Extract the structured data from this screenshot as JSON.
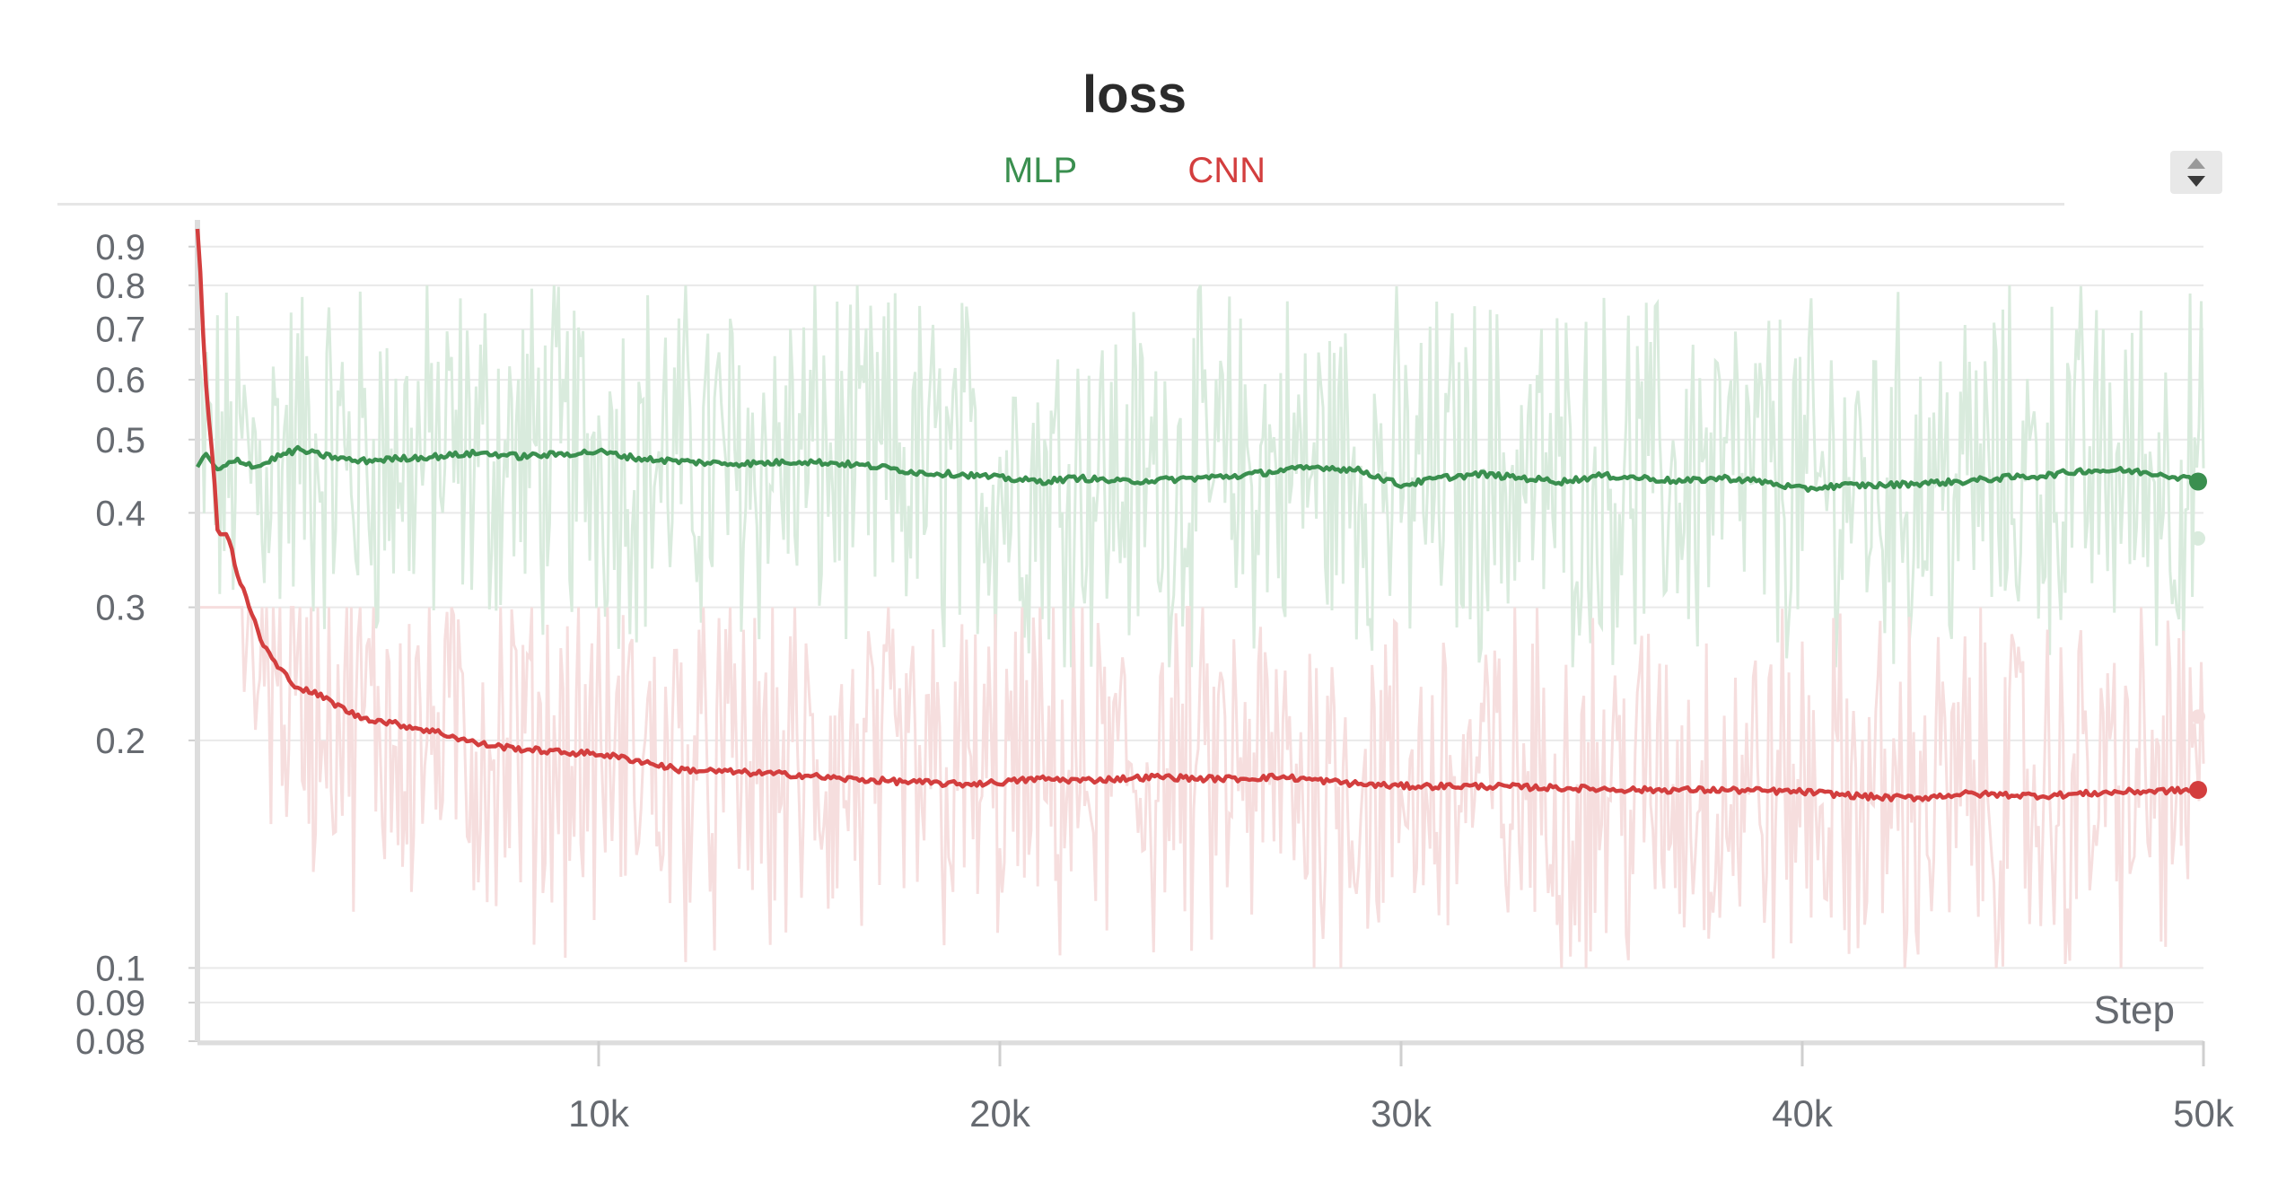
{
  "chart_data": {
    "type": "line",
    "title": "loss",
    "xlabel": "Step",
    "ylabel": "",
    "yscale": "log",
    "xlim": [
      0,
      50000
    ],
    "ylim": [
      0.08,
      0.95
    ],
    "grid": true,
    "legend": "top-center",
    "x_ticks": [
      {
        "value": 10000,
        "label": "10k"
      },
      {
        "value": 20000,
        "label": "20k"
      },
      {
        "value": 30000,
        "label": "30k"
      },
      {
        "value": 40000,
        "label": "40k"
      },
      {
        "value": 50000,
        "label": "50k"
      }
    ],
    "y_ticks": [
      {
        "value": 0.9,
        "label": "0.9"
      },
      {
        "value": 0.8,
        "label": "0.8"
      },
      {
        "value": 0.7,
        "label": "0.7"
      },
      {
        "value": 0.6,
        "label": "0.6"
      },
      {
        "value": 0.5,
        "label": "0.5"
      },
      {
        "value": 0.4,
        "label": "0.4"
      },
      {
        "value": 0.3,
        "label": "0.3"
      },
      {
        "value": 0.2,
        "label": "0.2"
      },
      {
        "value": 0.1,
        "label": "0.1"
      },
      {
        "value": 0.09,
        "label": "0.09"
      },
      {
        "value": 0.08,
        "label": "0.08"
      }
    ],
    "series": [
      {
        "name": "MLP",
        "color": "#3a8f4f",
        "raw_color": "#d9ebdd",
        "smoothed": {
          "x": [
            0,
            200,
            500,
            1000,
            1500,
            2000,
            2500,
            3000,
            4000,
            5000,
            6000,
            7000,
            7500,
            8000,
            9000,
            10000,
            11000,
            12000,
            13000,
            14000,
            15000,
            16000,
            17000,
            18000,
            19000,
            20000,
            21000,
            22000,
            23000,
            24000,
            25000,
            26000,
            27000,
            28000,
            29000,
            30000,
            31000,
            32000,
            33000,
            34000,
            35000,
            36000,
            37000,
            38000,
            39000,
            40000,
            41000,
            42000,
            43000,
            44000,
            45000,
            46000,
            47000,
            48000,
            49000,
            50000
          ],
          "y": [
            0.46,
            0.48,
            0.455,
            0.47,
            0.46,
            0.475,
            0.485,
            0.478,
            0.468,
            0.472,
            0.475,
            0.48,
            0.478,
            0.475,
            0.478,
            0.482,
            0.472,
            0.468,
            0.465,
            0.465,
            0.468,
            0.465,
            0.46,
            0.452,
            0.45,
            0.445,
            0.44,
            0.445,
            0.44,
            0.442,
            0.445,
            0.448,
            0.455,
            0.46,
            0.455,
            0.435,
            0.445,
            0.45,
            0.445,
            0.44,
            0.448,
            0.445,
            0.44,
            0.445,
            0.44,
            0.43,
            0.435,
            0.435,
            0.438,
            0.44,
            0.445,
            0.448,
            0.455,
            0.455,
            0.45,
            0.44
          ]
        },
        "raw_range": [
          0.25,
          0.8
        ],
        "raw_last": 0.37
      },
      {
        "name": "CNN",
        "color": "#d33e3e",
        "raw_color": "#f6dede",
        "smoothed": {
          "x": [
            0,
            80,
            180,
            300,
            400,
            500,
            800,
            1000,
            1300,
            1600,
            2000,
            2500,
            3000,
            4000,
            5000,
            6000,
            7000,
            8000,
            9000,
            10000,
            11000,
            12000,
            13000,
            14000,
            15000,
            16000,
            17000,
            18000,
            19000,
            20000,
            21000,
            22000,
            23000,
            24000,
            25000,
            26000,
            27000,
            28000,
            29000,
            30000,
            32000,
            34000,
            36000,
            38000,
            40000,
            42000,
            43000,
            44000,
            46000,
            47000,
            48000,
            50000
          ],
          "y": [
            0.95,
            0.82,
            0.62,
            0.52,
            0.46,
            0.38,
            0.37,
            0.33,
            0.3,
            0.27,
            0.25,
            0.235,
            0.23,
            0.215,
            0.21,
            0.205,
            0.198,
            0.195,
            0.193,
            0.192,
            0.188,
            0.183,
            0.182,
            0.181,
            0.18,
            0.178,
            0.177,
            0.176,
            0.175,
            0.176,
            0.178,
            0.177,
            0.178,
            0.179,
            0.178,
            0.178,
            0.179,
            0.177,
            0.175,
            0.174,
            0.174,
            0.173,
            0.172,
            0.172,
            0.171,
            0.168,
            0.168,
            0.17,
            0.169,
            0.17,
            0.171,
            0.172
          ]
        },
        "raw_range": [
          0.1,
          0.3
        ],
        "raw_last": 0.215
      }
    ]
  }
}
